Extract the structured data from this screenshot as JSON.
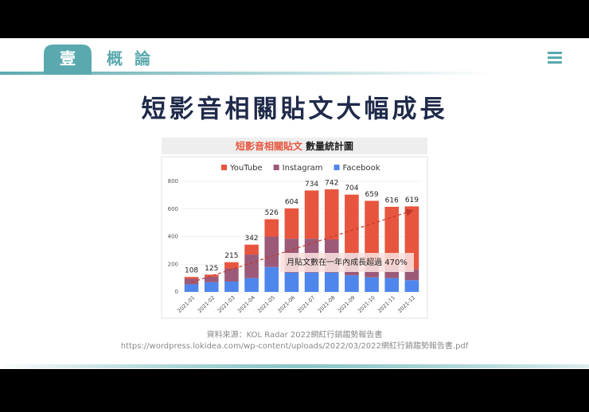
{
  "header": {
    "badge": "壹",
    "section": "概 論"
  },
  "slide_title": "短影音相關貼文大幅成長",
  "chart_header": {
    "highlight": "短影音相關貼文",
    "rest": "數量統計圖"
  },
  "chart_data": {
    "type": "stacked_bar",
    "categories": [
      "2021-01",
      "2021-02",
      "2021-03",
      "2021-04",
      "2021-05",
      "2021-06",
      "2021-07",
      "2021-08",
      "2021-09",
      "2021-10",
      "2021-11",
      "2021-12"
    ],
    "series": [
      {
        "name": "Facebook",
        "color": "#4f86ec",
        "values": [
          55,
          70,
          75,
          100,
          180,
          140,
          140,
          140,
          120,
          105,
          100,
          85
        ]
      },
      {
        "name": "Instagram",
        "color": "#9c5a78",
        "values": [
          40,
          40,
          95,
          170,
          220,
          245,
          245,
          240,
          160,
          110,
          90,
          80
        ]
      },
      {
        "name": "YouTube",
        "color": "#e8553e",
        "values": [
          13,
          15,
          45,
          72,
          126,
          219,
          349,
          362,
          424,
          444,
          426,
          454
        ]
      }
    ],
    "totals": [
      108,
      125,
      215,
      342,
      526,
      604,
      734,
      742,
      704,
      659,
      616,
      619
    ],
    "legend_order": [
      2,
      1,
      0
    ],
    "ylim": [
      0,
      800
    ],
    "yticks": [
      0,
      200,
      400,
      600,
      800
    ],
    "annotation": "月貼文數在一年內成長超過 470%"
  },
  "source": {
    "line1": "資料來源：KOL Radar 2022網紅行銷趨勢報告書",
    "line2": "https://wordpress.lokidea.com/wp-content/uploads/2022/03/2022網紅行銷趨勢報告書.pdf"
  }
}
